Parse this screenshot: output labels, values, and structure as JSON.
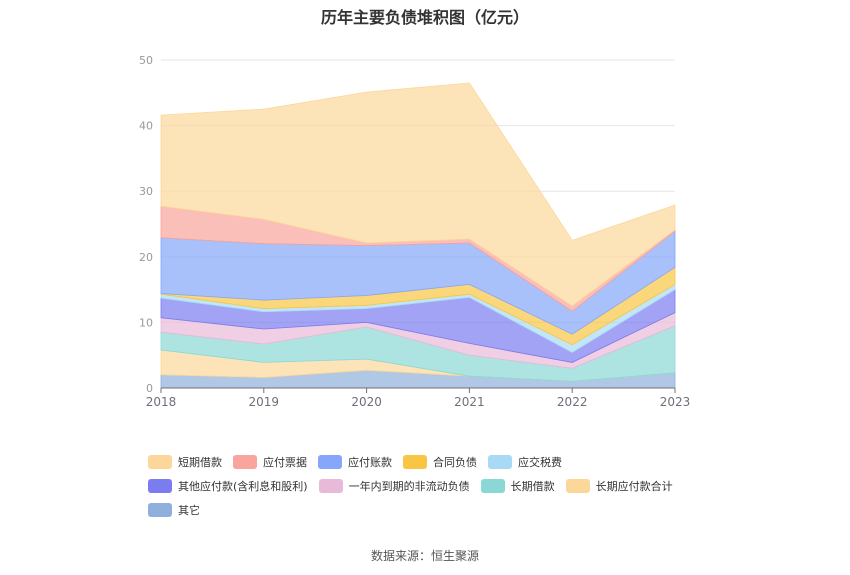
{
  "chart_data": {
    "type": "area",
    "stacked": true,
    "title": "历年主要负债堆积图（亿元）",
    "x": [
      "2018",
      "2019",
      "2020",
      "2021",
      "2022",
      "2023"
    ],
    "ylim": [
      0,
      50
    ],
    "yticks": [
      "0",
      "10",
      "20",
      "30",
      "40",
      "50"
    ],
    "grid": true,
    "legend_position": "bottom",
    "series": [
      {
        "name": "其它",
        "color": "#8fb0dc",
        "values": [
          2.0,
          1.6,
          2.7,
          1.8,
          1.0,
          2.3
        ]
      },
      {
        "name": "长期应付款合计",
        "color": "#fcd79a",
        "values": [
          3.8,
          2.3,
          1.7,
          0.0,
          0.0,
          0.0
        ]
      },
      {
        "name": "长期借款",
        "color": "#8ad8d6",
        "values": [
          2.7,
          2.8,
          4.9,
          3.2,
          2.0,
          7.2
        ]
      },
      {
        "name": "一年内到期的非流动负债",
        "color": "#e9b9d9",
        "values": [
          2.2,
          2.3,
          0.7,
          1.8,
          0.9,
          2.0
        ]
      },
      {
        "name": "其他应付款(含利息和股利)",
        "color": "#7b7cf0",
        "values": [
          3.0,
          2.6,
          2.1,
          7.0,
          1.5,
          3.5
        ]
      },
      {
        "name": "应交税费",
        "color": "#a8daf5",
        "values": [
          0.6,
          0.5,
          0.5,
          0.5,
          1.2,
          0.8
        ]
      },
      {
        "name": "合同负债",
        "color": "#f9c643",
        "values": [
          0.1,
          1.3,
          1.5,
          1.5,
          1.6,
          2.6
        ]
      },
      {
        "name": "应付账款",
        "color": "#85a6fa",
        "values": [
          8.5,
          8.6,
          7.6,
          6.3,
          3.5,
          5.5
        ]
      },
      {
        "name": "应付票据",
        "color": "#f9a49c",
        "values": [
          4.8,
          3.7,
          0.4,
          0.6,
          0.8,
          0.2
        ]
      },
      {
        "name": "短期借款",
        "color": "#fcd79a",
        "values": [
          13.9,
          16.8,
          23.0,
          23.8,
          10.0,
          3.8
        ]
      }
    ],
    "source": "数据来源：恒生聚源"
  }
}
